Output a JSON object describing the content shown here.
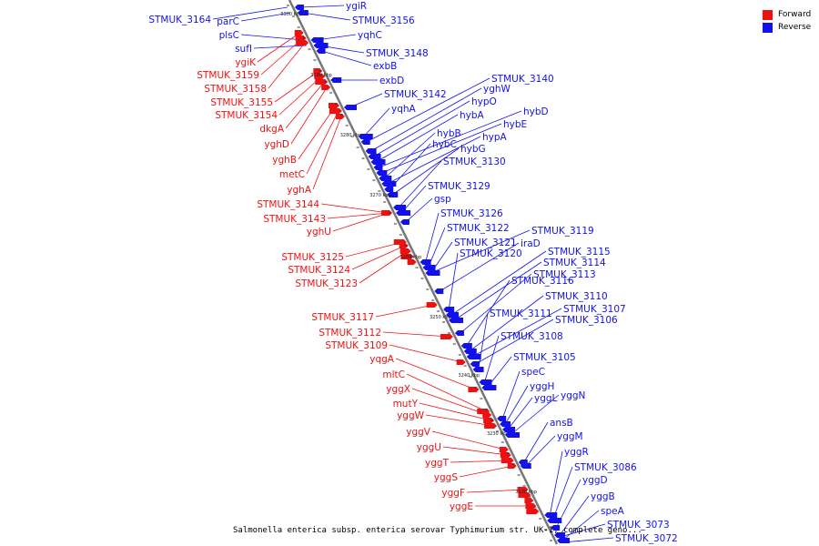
{
  "legend": {
    "forward_label": "Forward",
    "reverse_label": "Reverse",
    "forward_color": "#ee1111",
    "reverse_color": "#1111ee"
  },
  "caption": "Salmonella enterica subsp. enterica serovar Typhimurium str. UK-1, complete geno...",
  "ticks": [
    "3300 kbp",
    "3290 kbp",
    "3280 kbp",
    "3270 kbp",
    "3260 kbp",
    "3250 kbp",
    "3240 kbp",
    "3230 kbp",
    "3220 kbp"
  ],
  "forward_labels": [
    "ygiK",
    "STMUK_3159",
    "STMUK_3158",
    "STMUK_3155",
    "STMUK_3154",
    "dkgA",
    "yghD",
    "yghB",
    "metC",
    "yghA",
    "STMUK_3144",
    "STMUK_3143",
    "yghU",
    "STMUK_3125",
    "STMUK_3124",
    "STMUK_3123",
    "STMUK_3117",
    "STMUK_3112",
    "STMUK_3109",
    "yqgA",
    "mltC",
    "yggX",
    "mutY",
    "yggW",
    "yggV",
    "yggU",
    "yggT",
    "yggS",
    "yggF",
    "yggE"
  ],
  "reverse_labels_left": [
    "STMUK_3164",
    "parC",
    "plsC",
    "sufI"
  ],
  "reverse_labels_right": [
    "ygiR",
    "STMUK_3156",
    "yqhC",
    "STMUK_3148",
    "exbB",
    "exbD",
    "STMUK_3142",
    "yqhA",
    "STMUK_3140",
    "yghW",
    "hypO",
    "hybA",
    "hybD",
    "hybE",
    "hybB",
    "hypA",
    "hybC",
    "hybG",
    "STMUK_3130",
    "STMUK_3129",
    "gsp",
    "STMUK_3126",
    "STMUK_3122",
    "STMUK_3119",
    "STMUK_3121",
    "iraD",
    "STMUK_3120",
    "STMUK_3115",
    "STMUK_3114",
    "STMUK_3113",
    "STMUK_3116",
    "STMUK_3110",
    "STMUK_3107",
    "STMUK_3106",
    "STMUK_3111",
    "STMUK_3108",
    "STMUK_3105",
    "speC",
    "yggH",
    "yggL",
    "yggN",
    "ansB",
    "yggM",
    "yggR",
    "STMUK_3086",
    "yggD",
    "yggB",
    "speA",
    "STMUK_3073",
    "STMUK_3072"
  ]
}
